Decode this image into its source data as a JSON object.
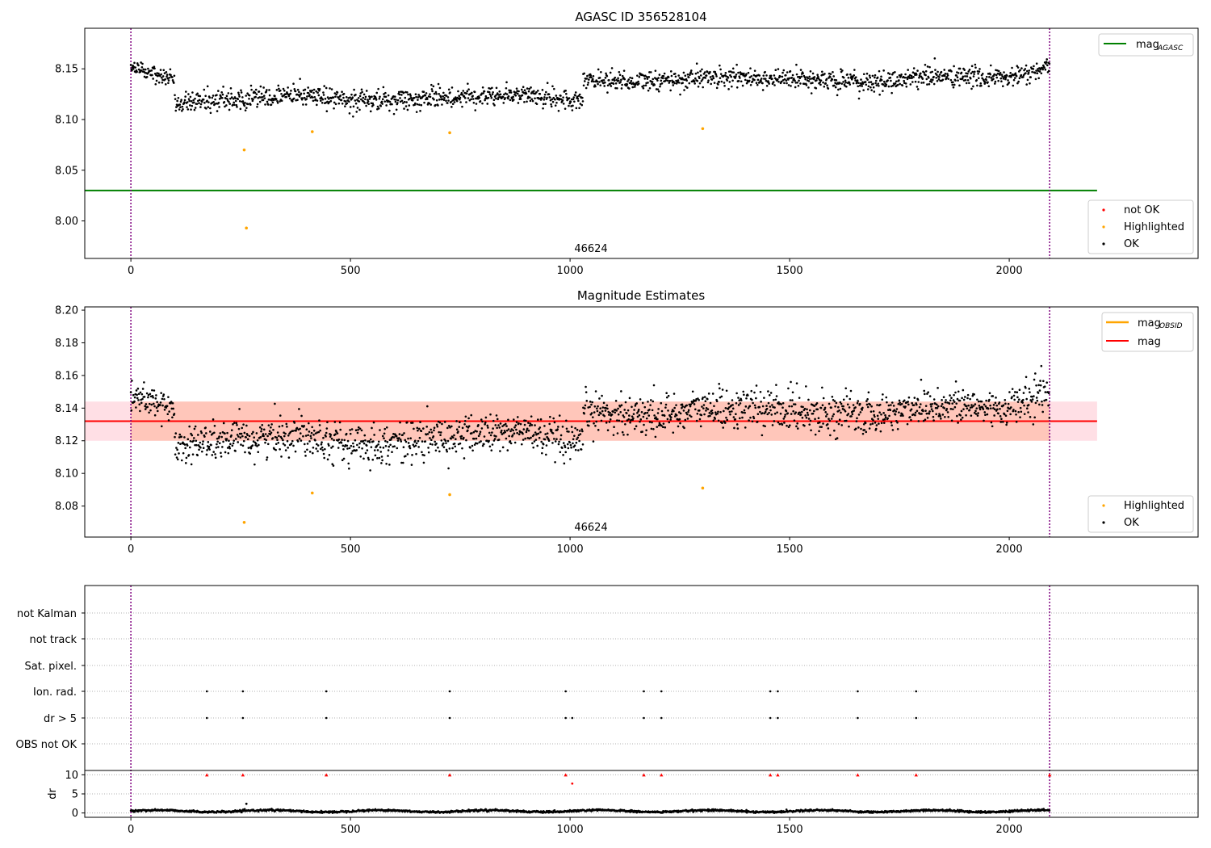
{
  "chart_data": [
    {
      "type": "scatter",
      "title": "AGASC ID 356528104",
      "xlim": [
        -105,
        2430
      ],
      "ylim": [
        7.963,
        8.19
      ],
      "x_ticks": [
        0,
        500,
        1000,
        1500,
        2000
      ],
      "y_ticks": [
        8.0,
        8.05,
        8.1,
        8.15
      ],
      "y_tick_labels": [
        "8.00",
        "8.05",
        "8.10",
        "8.15"
      ],
      "annotation": "46624",
      "obs_boundaries": [
        0,
        2092
      ],
      "hlines": [
        {
          "name": "mag_AGASC",
          "y": 8.03,
          "x": [
            -105,
            2200
          ],
          "color": "#008000"
        }
      ],
      "legend_top": [
        {
          "label": "mag",
          "sub": "AGASC",
          "color": "#008000"
        }
      ],
      "legend_bottom": [
        {
          "label": "not OK",
          "color": "#ff0000"
        },
        {
          "label": "Highlighted",
          "color": "#ffa500"
        },
        {
          "label": "OK",
          "color": "#000000"
        }
      ],
      "series": [
        {
          "name": "OK",
          "color": "#000000",
          "segments": [
            {
              "x": [
                0,
                100
              ],
              "levels": [
                [
                  0,
                  8.149
                ],
                [
                  50,
                  8.147
                ],
                [
                  100,
                  8.14
                ]
              ],
              "sd": 0.004
            },
            {
              "x": [
                100,
                1030
              ],
              "levels": [
                [
                  100,
                  8.118
                ],
                [
                  250,
                  8.12
                ],
                [
                  400,
                  8.125
                ],
                [
                  500,
                  8.118
                ],
                [
                  650,
                  8.12
                ],
                [
                  800,
                  8.124
                ],
                [
                  900,
                  8.125
                ],
                [
                  1000,
                  8.118
                ],
                [
                  1030,
                  8.118
                ]
              ],
              "sd": 0.005
            },
            {
              "x": [
                1030,
                2092
              ],
              "levels": [
                [
                  1030,
                  8.14
                ],
                [
                  1200,
                  8.137
                ],
                [
                  1300,
                  8.142
                ],
                [
                  1500,
                  8.14
                ],
                [
                  1700,
                  8.136
                ],
                [
                  1800,
                  8.143
                ],
                [
                  2000,
                  8.141
                ],
                [
                  2092,
                  8.15
                ]
              ],
              "sd": 0.005
            }
          ]
        },
        {
          "name": "Highlighted",
          "color": "#ffa500",
          "points": [
            [
              258,
              8.07
            ],
            [
              263,
              7.993
            ],
            [
              413,
              8.088
            ],
            [
              726,
              8.087
            ],
            [
              1302,
              8.091
            ]
          ]
        }
      ]
    },
    {
      "type": "scatter",
      "title": "Magnitude Estimates",
      "xlim": [
        -105,
        2430
      ],
      "ylim": [
        8.061,
        8.202
      ],
      "x_ticks": [
        0,
        500,
        1000,
        1500,
        2000
      ],
      "y_ticks": [
        8.08,
        8.1,
        8.12,
        8.14,
        8.16,
        8.18,
        8.2
      ],
      "y_tick_labels": [
        "8.08",
        "8.10",
        "8.12",
        "8.14",
        "8.16",
        "8.18",
        "8.20"
      ],
      "annotation": "46624",
      "obs_boundaries": [
        0,
        2092
      ],
      "bands": [
        {
          "y": [
            8.12,
            8.144
          ],
          "x": [
            -105,
            2200
          ],
          "color": "#ffc0cb"
        },
        {
          "y": [
            8.12,
            8.144
          ],
          "x": [
            0,
            2092
          ],
          "color": "#ffa07a"
        }
      ],
      "hlines": [
        {
          "name": "mag",
          "y": 8.132,
          "x": [
            -105,
            2200
          ],
          "color": "#ff0000"
        }
      ],
      "legend_top": [
        {
          "label": "mag",
          "sub": "OBSID",
          "color": "#ffa500"
        },
        {
          "label": "mag",
          "sub": "",
          "color": "#ff0000"
        }
      ],
      "legend_bottom": [
        {
          "label": "Highlighted",
          "color": "#ffa500"
        },
        {
          "label": "OK",
          "color": "#000000"
        }
      ],
      "series": [
        {
          "name": "OK",
          "color": "#000000",
          "segments": [
            {
              "x": [
                0,
                100
              ],
              "levels": [
                [
                  0,
                  8.147
                ],
                [
                  50,
                  8.145
                ],
                [
                  100,
                  8.138
                ]
              ],
              "sd": 0.004
            },
            {
              "x": [
                100,
                1030
              ],
              "levels": [
                [
                  100,
                  8.118
                ],
                [
                  250,
                  8.12
                ],
                [
                  400,
                  8.125
                ],
                [
                  500,
                  8.117
                ],
                [
                  650,
                  8.12
                ],
                [
                  800,
                  8.124
                ],
                [
                  900,
                  8.126
                ],
                [
                  1000,
                  8.117
                ],
                [
                  1030,
                  8.117
                ]
              ],
              "sd": 0.006
            },
            {
              "x": [
                1030,
                2092
              ],
              "levels": [
                [
                  1030,
                  8.138
                ],
                [
                  1200,
                  8.135
                ],
                [
                  1300,
                  8.14
                ],
                [
                  1500,
                  8.139
                ],
                [
                  1700,
                  8.135
                ],
                [
                  1800,
                  8.142
                ],
                [
                  2000,
                  8.14
                ],
                [
                  2092,
                  8.15
                ]
              ],
              "sd": 0.006
            }
          ]
        },
        {
          "name": "Highlighted",
          "color": "#ffa500",
          "points": [
            [
              258,
              8.07
            ],
            [
              413,
              8.088
            ],
            [
              726,
              8.087
            ],
            [
              1302,
              8.091
            ]
          ]
        }
      ]
    },
    {
      "type": "scatter",
      "title": "",
      "xlim": [
        -105,
        2430
      ],
      "x_ticks": [
        0,
        500,
        1000,
        1500,
        2000
      ],
      "obs_boundaries": [
        0,
        2092
      ],
      "flag_categories": [
        "not Kalman",
        "not track",
        "Sat. pixel.",
        "Ion. rad.",
        "dr > 5",
        "OBS not OK"
      ],
      "flags": {
        "Ion. rad.": [
          173,
          255,
          445,
          726,
          990,
          1168,
          1208,
          1456,
          1473,
          1655,
          1788
        ],
        "dr > 5": [
          173,
          255,
          445,
          726,
          990,
          1005,
          1168,
          1208,
          1456,
          1473,
          1655,
          1788
        ]
      },
      "dr": {
        "ylabel": "dr",
        "ylim": [
          -0.5,
          10.5
        ],
        "y_ticks": [
          0,
          5,
          10
        ],
        "y_tick_labels": [
          "0",
          "5",
          "10"
        ],
        "capped_at_10": [
          173,
          255,
          445,
          726,
          990,
          1168,
          1208,
          1456,
          1473,
          1655,
          1788,
          2092
        ],
        "extra_points": [
          [
            1005,
            7.7
          ],
          [
            263,
            2.4
          ]
        ],
        "baseline": {
          "x": [
            0,
            2092
          ],
          "mean": 0.5,
          "sd": 0.25
        }
      }
    }
  ]
}
